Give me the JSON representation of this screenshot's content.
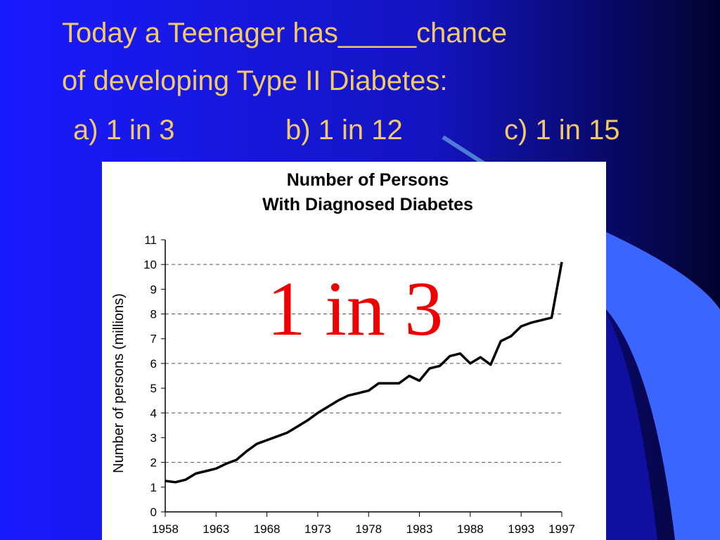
{
  "slide": {
    "title_lines": [
      "Today a Teenager has_____chance",
      "of developing Type II Diabetes:"
    ],
    "options": [
      "a) 1 in 3",
      "b) 1 in 12",
      "c) 1 in 15"
    ]
  },
  "chart_data": {
    "type": "line",
    "title_lines": [
      "Number of Persons",
      "With Diagnosed Diabetes"
    ],
    "y_label": "Number of persons (millions)",
    "annotation": "1 in 3",
    "x": [
      1958,
      1959,
      1960,
      1961,
      1962,
      1963,
      1964,
      1965,
      1966,
      1967,
      1968,
      1969,
      1970,
      1971,
      1972,
      1973,
      1974,
      1975,
      1976,
      1977,
      1978,
      1979,
      1980,
      1981,
      1982,
      1983,
      1984,
      1985,
      1986,
      1987,
      1988,
      1989,
      1990,
      1991,
      1992,
      1993,
      1994,
      1995,
      1996,
      1997
    ],
    "values": [
      1.25,
      1.2,
      1.3,
      1.55,
      1.65,
      1.75,
      1.95,
      2.1,
      2.45,
      2.75,
      2.9,
      3.05,
      3.2,
      3.45,
      3.7,
      4.0,
      4.25,
      4.5,
      4.7,
      4.8,
      4.9,
      5.2,
      5.2,
      5.2,
      5.5,
      5.3,
      5.8,
      5.9,
      6.3,
      6.4,
      6.0,
      6.25,
      5.95,
      6.9,
      7.1,
      7.5,
      7.65,
      7.75,
      7.85,
      10.1
    ],
    "color": "#000000",
    "xlim": [
      1958,
      1997
    ],
    "xticks": [
      1958,
      1963,
      1968,
      1973,
      1978,
      1983,
      1988,
      1993,
      1997
    ],
    "ylim": [
      0,
      11
    ],
    "yticks": [
      0,
      1,
      2,
      3,
      4,
      5,
      6,
      7,
      8,
      9,
      10,
      11
    ],
    "gridlines": [
      2,
      4,
      6,
      8,
      10
    ]
  }
}
